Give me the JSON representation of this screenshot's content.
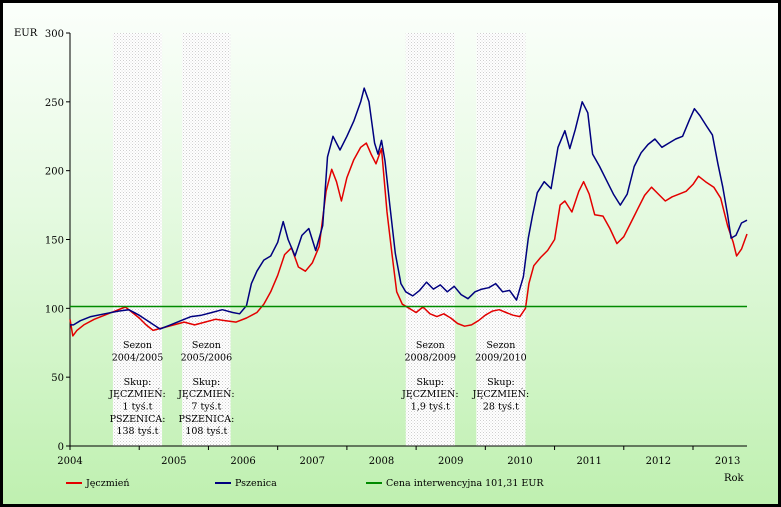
{
  "chart_data": {
    "type": "line",
    "ylabel": "EUR",
    "xlabel": "Rok",
    "ylim": [
      0,
      300
    ],
    "y_ticks": [
      "0",
      "50",
      "100",
      "150",
      "200",
      "250",
      "300"
    ],
    "x_tick_years": [
      "2004",
      "2005",
      "2006",
      "2007",
      "2008",
      "2009",
      "2010",
      "2011",
      "2012",
      "2013"
    ],
    "xlim": [
      2004.0,
      2013.78
    ],
    "grid": false,
    "legend_position": "bottom",
    "series": [
      {
        "name": "Jęczmień",
        "color": "#e30000",
        "points": [
          [
            2004.0,
            92
          ],
          [
            2004.04,
            80
          ],
          [
            2004.1,
            84
          ],
          [
            2004.2,
            88
          ],
          [
            2004.35,
            92
          ],
          [
            2004.5,
            95
          ],
          [
            2004.65,
            98
          ],
          [
            2004.8,
            101
          ],
          [
            2004.9,
            97
          ],
          [
            2005.0,
            93
          ],
          [
            2005.1,
            88
          ],
          [
            2005.2,
            84
          ],
          [
            2005.35,
            86
          ],
          [
            2005.5,
            88
          ],
          [
            2005.65,
            90
          ],
          [
            2005.8,
            88
          ],
          [
            2005.95,
            90
          ],
          [
            2006.1,
            92
          ],
          [
            2006.25,
            91
          ],
          [
            2006.4,
            90
          ],
          [
            2006.55,
            93
          ],
          [
            2006.7,
            97
          ],
          [
            2006.8,
            103
          ],
          [
            2006.9,
            112
          ],
          [
            2007.0,
            124
          ],
          [
            2007.1,
            139
          ],
          [
            2007.2,
            144
          ],
          [
            2007.3,
            130
          ],
          [
            2007.4,
            127
          ],
          [
            2007.5,
            133
          ],
          [
            2007.6,
            145
          ],
          [
            2007.7,
            185
          ],
          [
            2007.78,
            201
          ],
          [
            2007.85,
            192
          ],
          [
            2007.92,
            178
          ],
          [
            2008.0,
            195
          ],
          [
            2008.1,
            208
          ],
          [
            2008.2,
            217
          ],
          [
            2008.28,
            220
          ],
          [
            2008.35,
            212
          ],
          [
            2008.42,
            205
          ],
          [
            2008.5,
            216
          ],
          [
            2008.58,
            170
          ],
          [
            2008.65,
            140
          ],
          [
            2008.72,
            112
          ],
          [
            2008.8,
            103
          ],
          [
            2008.9,
            100
          ],
          [
            2009.0,
            97
          ],
          [
            2009.1,
            101
          ],
          [
            2009.2,
            96
          ],
          [
            2009.3,
            94
          ],
          [
            2009.4,
            96
          ],
          [
            2009.5,
            93
          ],
          [
            2009.6,
            89
          ],
          [
            2009.7,
            87
          ],
          [
            2009.8,
            88
          ],
          [
            2009.9,
            91
          ],
          [
            2010.0,
            95
          ],
          [
            2010.1,
            98
          ],
          [
            2010.2,
            99
          ],
          [
            2010.3,
            97
          ],
          [
            2010.4,
            95
          ],
          [
            2010.5,
            94
          ],
          [
            2010.58,
            100
          ],
          [
            2010.63,
            118
          ],
          [
            2010.7,
            131
          ],
          [
            2010.8,
            137
          ],
          [
            2010.9,
            142
          ],
          [
            2011.0,
            150
          ],
          [
            2011.08,
            175
          ],
          [
            2011.15,
            178
          ],
          [
            2011.25,
            170
          ],
          [
            2011.35,
            185
          ],
          [
            2011.42,
            192
          ],
          [
            2011.5,
            183
          ],
          [
            2011.58,
            168
          ],
          [
            2011.7,
            167
          ],
          [
            2011.8,
            158
          ],
          [
            2011.9,
            147
          ],
          [
            2012.0,
            152
          ],
          [
            2012.1,
            162
          ],
          [
            2012.2,
            172
          ],
          [
            2012.3,
            182
          ],
          [
            2012.4,
            188
          ],
          [
            2012.5,
            183
          ],
          [
            2012.6,
            178
          ],
          [
            2012.7,
            181
          ],
          [
            2012.8,
            183
          ],
          [
            2012.9,
            185
          ],
          [
            2013.0,
            190
          ],
          [
            2013.08,
            196
          ],
          [
            2013.18,
            192
          ],
          [
            2013.3,
            188
          ],
          [
            2013.4,
            180
          ],
          [
            2013.5,
            160
          ],
          [
            2013.58,
            148
          ],
          [
            2013.63,
            138
          ],
          [
            2013.7,
            143
          ],
          [
            2013.78,
            154
          ]
        ]
      },
      {
        "name": "Pszenica",
        "color": "#00007f",
        "points": [
          [
            2004.0,
            88
          ],
          [
            2004.05,
            88
          ],
          [
            2004.15,
            91
          ],
          [
            2004.3,
            94
          ],
          [
            2004.5,
            96
          ],
          [
            2004.7,
            98
          ],
          [
            2004.85,
            99
          ],
          [
            2005.0,
            95
          ],
          [
            2005.15,
            90
          ],
          [
            2005.3,
            85
          ],
          [
            2005.45,
            88
          ],
          [
            2005.6,
            91
          ],
          [
            2005.75,
            94
          ],
          [
            2005.9,
            95
          ],
          [
            2006.05,
            97
          ],
          [
            2006.2,
            99
          ],
          [
            2006.35,
            97
          ],
          [
            2006.45,
            96
          ],
          [
            2006.55,
            102
          ],
          [
            2006.62,
            118
          ],
          [
            2006.7,
            127
          ],
          [
            2006.8,
            135
          ],
          [
            2006.9,
            138
          ],
          [
            2007.0,
            148
          ],
          [
            2007.08,
            163
          ],
          [
            2007.15,
            150
          ],
          [
            2007.25,
            138
          ],
          [
            2007.35,
            153
          ],
          [
            2007.45,
            158
          ],
          [
            2007.55,
            142
          ],
          [
            2007.65,
            160
          ],
          [
            2007.72,
            210
          ],
          [
            2007.8,
            225
          ],
          [
            2007.9,
            215
          ],
          [
            2008.0,
            225
          ],
          [
            2008.1,
            236
          ],
          [
            2008.2,
            250
          ],
          [
            2008.25,
            260
          ],
          [
            2008.32,
            250
          ],
          [
            2008.4,
            220
          ],
          [
            2008.45,
            212
          ],
          [
            2008.5,
            222
          ],
          [
            2008.55,
            207
          ],
          [
            2008.62,
            175
          ],
          [
            2008.7,
            140
          ],
          [
            2008.78,
            118
          ],
          [
            2008.85,
            112
          ],
          [
            2008.95,
            109
          ],
          [
            2009.05,
            113
          ],
          [
            2009.15,
            119
          ],
          [
            2009.25,
            114
          ],
          [
            2009.35,
            117
          ],
          [
            2009.45,
            112
          ],
          [
            2009.55,
            116
          ],
          [
            2009.65,
            110
          ],
          [
            2009.75,
            107
          ],
          [
            2009.85,
            112
          ],
          [
            2009.95,
            114
          ],
          [
            2010.05,
            115
          ],
          [
            2010.15,
            118
          ],
          [
            2010.25,
            112
          ],
          [
            2010.35,
            113
          ],
          [
            2010.45,
            106
          ],
          [
            2010.55,
            123
          ],
          [
            2010.62,
            151
          ],
          [
            2010.68,
            167
          ],
          [
            2010.75,
            184
          ],
          [
            2010.85,
            192
          ],
          [
            2010.95,
            187
          ],
          [
            2011.05,
            217
          ],
          [
            2011.15,
            229
          ],
          [
            2011.22,
            216
          ],
          [
            2011.3,
            230
          ],
          [
            2011.4,
            250
          ],
          [
            2011.48,
            242
          ],
          [
            2011.55,
            212
          ],
          [
            2011.65,
            203
          ],
          [
            2011.75,
            193
          ],
          [
            2011.85,
            183
          ],
          [
            2011.95,
            175
          ],
          [
            2012.05,
            183
          ],
          [
            2012.15,
            203
          ],
          [
            2012.25,
            213
          ],
          [
            2012.35,
            219
          ],
          [
            2012.45,
            223
          ],
          [
            2012.55,
            217
          ],
          [
            2012.65,
            220
          ],
          [
            2012.75,
            223
          ],
          [
            2012.85,
            225
          ],
          [
            2012.95,
            237
          ],
          [
            2013.02,
            245
          ],
          [
            2013.1,
            240
          ],
          [
            2013.2,
            232
          ],
          [
            2013.28,
            226
          ],
          [
            2013.36,
            205
          ],
          [
            2013.43,
            188
          ],
          [
            2013.5,
            168
          ],
          [
            2013.55,
            151
          ],
          [
            2013.62,
            153
          ],
          [
            2013.7,
            162
          ],
          [
            2013.78,
            164
          ]
        ]
      },
      {
        "name": "Cena interwencyjna 101,31 EUR",
        "color": "#008a00",
        "points": [
          [
            2004.0,
            101.31
          ],
          [
            2013.78,
            101.31
          ]
        ]
      }
    ],
    "shaded_periods": [
      {
        "from": 2004.62,
        "to": 2005.33,
        "lines": [
          "Sezon",
          "2004/2005",
          "",
          "Skup:",
          "JĘCZMIEŃ:",
          "1 tyś.t",
          "PSZENICA:",
          "138 tyś.t"
        ]
      },
      {
        "from": 2005.62,
        "to": 2006.32,
        "lines": [
          "Sezon",
          "2005/2006",
          "",
          "Skup:",
          "JĘCZMIEŃ:",
          "7 tyś.t",
          "PSZENICA:",
          "108 tyś.t"
        ]
      },
      {
        "from": 2008.85,
        "to": 2009.56,
        "lines": [
          "Sezon",
          "2008/2009",
          "",
          "Skup:",
          "JĘCZMIEŃ:",
          "1,9 tyś.t"
        ]
      },
      {
        "from": 2009.87,
        "to": 2010.58,
        "lines": [
          "Sezon",
          "2009/2010",
          "",
          "Skup:",
          "JĘCZMIEŃ:",
          "28 tyś.t"
        ]
      }
    ]
  }
}
